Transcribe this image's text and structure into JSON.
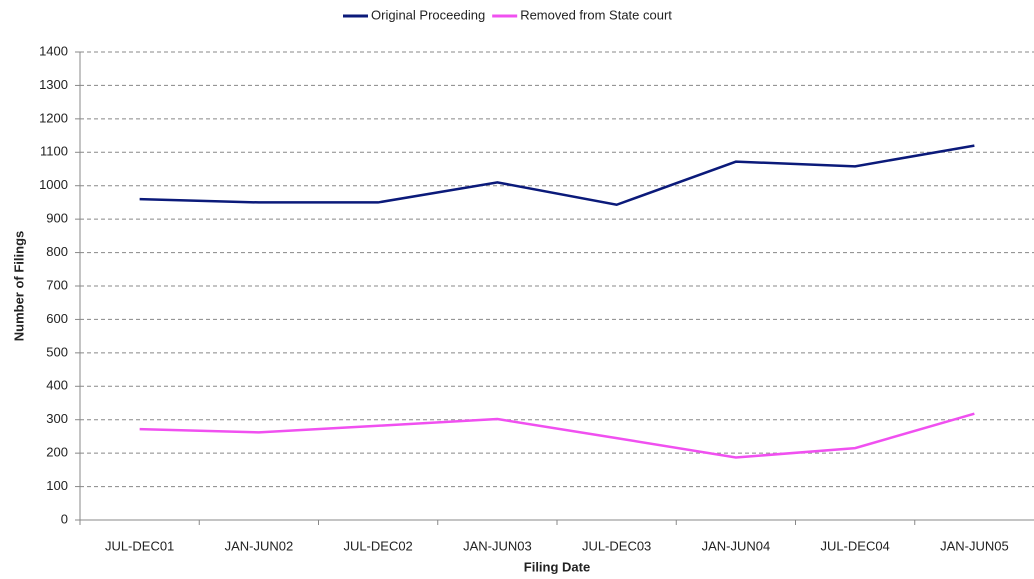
{
  "chart_data": {
    "type": "line",
    "x_label": "Filing Date",
    "y_label": "Number of Filings",
    "categories": [
      "JUL-DEC01",
      "JAN-JUN02",
      "JUL-DEC02",
      "JAN-JUN03",
      "JUL-DEC03",
      "JAN-JUN04",
      "JUL-DEC04",
      "JAN-JUN05"
    ],
    "series": [
      {
        "name": "Original Proceeding",
        "color": "#0b1a7a",
        "values": [
          960,
          950,
          950,
          1010,
          943,
          1072,
          1058,
          1120
        ]
      },
      {
        "name": "Removed from State court",
        "color": "#f050f0",
        "values": [
          272,
          262,
          282,
          302,
          245,
          187,
          215,
          318
        ]
      }
    ],
    "ylim": [
      0,
      1400
    ],
    "yticks": [
      0,
      100,
      200,
      300,
      400,
      500,
      600,
      700,
      800,
      900,
      1000,
      1100,
      1200,
      1300,
      1400
    ],
    "grid": true,
    "legend": "top"
  }
}
